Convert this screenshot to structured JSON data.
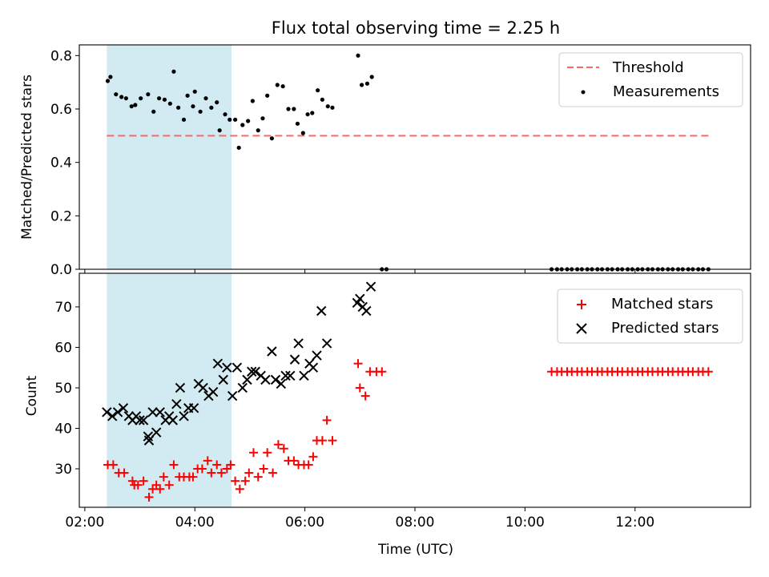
{
  "title": "Flux total observing time = 2.25 h",
  "colors": {
    "shade": "#add8e6",
    "threshold": "#ff6666",
    "matched": "#ff0000",
    "predicted": "#000000",
    "measurement": "#000000"
  },
  "chart_data": [
    {
      "type": "scatter",
      "ylabel": "Matched/Predicted stars",
      "xlim": [
        "01:54",
        "14:06"
      ],
      "ylim": [
        0,
        0.84
      ],
      "yticks": [
        "0.0",
        "0.2",
        "0.4",
        "0.6",
        "0.8"
      ],
      "shaded_span": [
        "02:24",
        "04:40"
      ],
      "legend": {
        "position": "top-right",
        "entries": [
          "Threshold",
          "Measurements"
        ]
      },
      "threshold": {
        "name": "Threshold",
        "y": 0.5,
        "x": [
          "02:24",
          "13:20"
        ],
        "style": "dashed"
      },
      "series": [
        {
          "name": "Measurements",
          "marker": "dot",
          "points": [
            [
              "02:25",
              0.705
            ],
            [
              "02:28",
              0.72
            ],
            [
              "02:34",
              0.655
            ],
            [
              "02:40",
              0.645
            ],
            [
              "02:45",
              0.64
            ],
            [
              "02:51",
              0.61
            ],
            [
              "02:55",
              0.615
            ],
            [
              "03:01",
              0.64
            ],
            [
              "03:09",
              0.655
            ],
            [
              "03:15",
              0.59
            ],
            [
              "03:21",
              0.64
            ],
            [
              "03:27",
              0.635
            ],
            [
              "03:33",
              0.62
            ],
            [
              "03:37",
              0.74
            ],
            [
              "03:42",
              0.605
            ],
            [
              "03:48",
              0.56
            ],
            [
              "03:52",
              0.65
            ],
            [
              "03:58",
              0.61
            ],
            [
              "04:00",
              0.665
            ],
            [
              "04:06",
              0.59
            ],
            [
              "04:12",
              0.64
            ],
            [
              "04:18",
              0.605
            ],
            [
              "04:24",
              0.625
            ],
            [
              "04:27",
              0.52
            ],
            [
              "04:33",
              0.58
            ],
            [
              "04:38",
              0.56
            ],
            [
              "04:44",
              0.56
            ],
            [
              "04:48",
              0.455
            ],
            [
              "04:52",
              0.54
            ],
            [
              "04:58",
              0.555
            ],
            [
              "05:03",
              0.63
            ],
            [
              "05:09",
              0.52
            ],
            [
              "05:14",
              0.565
            ],
            [
              "05:19",
              0.65
            ],
            [
              "05:24",
              0.49
            ],
            [
              "05:30",
              0.69
            ],
            [
              "05:36",
              0.685
            ],
            [
              "05:42",
              0.6
            ],
            [
              "05:48",
              0.6
            ],
            [
              "05:52",
              0.545
            ],
            [
              "05:58",
              0.51
            ],
            [
              "06:03",
              0.58
            ],
            [
              "06:08",
              0.585
            ],
            [
              "06:14",
              0.67
            ],
            [
              "06:19",
              0.635
            ],
            [
              "06:25",
              0.61
            ],
            [
              "06:30",
              0.605
            ],
            [
              "06:58",
              0.8
            ],
            [
              "07:02",
              0.69
            ],
            [
              "07:08",
              0.695
            ],
            [
              "07:13",
              0.72
            ],
            [
              "07:24",
              0.0
            ],
            [
              "07:29",
              0.0
            ],
            [
              "10:29",
              0.0
            ],
            [
              "10:35",
              0.0
            ],
            [
              "10:40",
              0.0
            ],
            [
              "10:46",
              0.0
            ],
            [
              "10:51",
              0.0
            ],
            [
              "10:57",
              0.0
            ],
            [
              "11:02",
              0.0
            ],
            [
              "11:08",
              0.0
            ],
            [
              "11:13",
              0.0
            ],
            [
              "11:19",
              0.0
            ],
            [
              "11:24",
              0.0
            ],
            [
              "11:30",
              0.0
            ],
            [
              "11:35",
              0.0
            ],
            [
              "11:41",
              0.0
            ],
            [
              "11:46",
              0.0
            ],
            [
              "11:52",
              0.0
            ],
            [
              "11:57",
              0.0
            ],
            [
              "12:03",
              0.0
            ],
            [
              "12:08",
              0.0
            ],
            [
              "12:14",
              0.0
            ],
            [
              "12:19",
              0.0
            ],
            [
              "12:25",
              0.0
            ],
            [
              "12:30",
              0.0
            ],
            [
              "12:36",
              0.0
            ],
            [
              "12:41",
              0.0
            ],
            [
              "12:47",
              0.0
            ],
            [
              "12:52",
              0.0
            ],
            [
              "12:58",
              0.0
            ],
            [
              "13:03",
              0.0
            ],
            [
              "13:09",
              0.0
            ],
            [
              "13:14",
              0.0
            ],
            [
              "13:20",
              0.0
            ]
          ]
        }
      ]
    },
    {
      "type": "scatter",
      "xlabel": "Time (UTC)",
      "ylabel": "Count",
      "xlim": [
        "01:54",
        "14:06"
      ],
      "ylim": [
        20.5,
        78.3
      ],
      "yticks": [
        "30",
        "40",
        "50",
        "60",
        "70"
      ],
      "xticks": [
        "02:00",
        "04:00",
        "06:00",
        "08:00",
        "10:00",
        "12:00"
      ],
      "shaded_span": [
        "02:24",
        "04:40"
      ],
      "legend": {
        "position": "top-right",
        "entries": [
          "Matched stars",
          "Predicted stars"
        ]
      },
      "series": [
        {
          "name": "Matched stars",
          "marker": "plus",
          "points": [
            [
              "02:25",
              31
            ],
            [
              "02:31",
              31
            ],
            [
              "02:37",
              29
            ],
            [
              "02:43",
              29
            ],
            [
              "02:52",
              27
            ],
            [
              "02:54",
              26
            ],
            [
              "02:58",
              26
            ],
            [
              "03:04",
              27
            ],
            [
              "03:10",
              23
            ],
            [
              "03:14",
              25
            ],
            [
              "03:18",
              26
            ],
            [
              "03:22",
              25
            ],
            [
              "03:26",
              28
            ],
            [
              "03:32",
              26
            ],
            [
              "03:37",
              31
            ],
            [
              "03:43",
              28
            ],
            [
              "03:48",
              28
            ],
            [
              "03:54",
              28
            ],
            [
              "03:58",
              28
            ],
            [
              "04:03",
              30
            ],
            [
              "04:08",
              30
            ],
            [
              "04:14",
              32
            ],
            [
              "04:18",
              29
            ],
            [
              "04:24",
              31
            ],
            [
              "04:29",
              29
            ],
            [
              "04:35",
              30
            ],
            [
              "04:39",
              31
            ],
            [
              "04:44",
              27
            ],
            [
              "04:49",
              25
            ],
            [
              "04:55",
              27
            ],
            [
              "04:59",
              29
            ],
            [
              "05:04",
              34
            ],
            [
              "05:09",
              28
            ],
            [
              "05:15",
              30
            ],
            [
              "05:19",
              34
            ],
            [
              "05:25",
              29
            ],
            [
              "05:31",
              36
            ],
            [
              "05:37",
              35
            ],
            [
              "05:42",
              32
            ],
            [
              "05:48",
              32
            ],
            [
              "05:53",
              31
            ],
            [
              "05:59",
              31
            ],
            [
              "06:04",
              31
            ],
            [
              "06:09",
              33
            ],
            [
              "06:13",
              37
            ],
            [
              "06:19",
              37
            ],
            [
              "06:24",
              42
            ],
            [
              "06:30",
              37
            ],
            [
              "06:58",
              56
            ],
            [
              "07:00",
              50
            ],
            [
              "07:06",
              48
            ],
            [
              "07:11",
              54
            ],
            [
              "07:18",
              54
            ],
            [
              "07:24",
              54
            ],
            [
              "10:29",
              54
            ],
            [
              "10:35",
              54
            ],
            [
              "10:40",
              54
            ],
            [
              "10:46",
              54
            ],
            [
              "10:51",
              54
            ],
            [
              "10:57",
              54
            ],
            [
              "11:02",
              54
            ],
            [
              "11:08",
              54
            ],
            [
              "11:13",
              54
            ],
            [
              "11:19",
              54
            ],
            [
              "11:24",
              54
            ],
            [
              "11:30",
              54
            ],
            [
              "11:35",
              54
            ],
            [
              "11:41",
              54
            ],
            [
              "11:46",
              54
            ],
            [
              "11:52",
              54
            ],
            [
              "11:57",
              54
            ],
            [
              "12:03",
              54
            ],
            [
              "12:08",
              54
            ],
            [
              "12:14",
              54
            ],
            [
              "12:19",
              54
            ],
            [
              "12:25",
              54
            ],
            [
              "12:30",
              54
            ],
            [
              "12:36",
              54
            ],
            [
              "12:41",
              54
            ],
            [
              "12:47",
              54
            ],
            [
              "12:52",
              54
            ],
            [
              "12:58",
              54
            ],
            [
              "13:03",
              54
            ],
            [
              "13:09",
              54
            ],
            [
              "13:14",
              54
            ],
            [
              "13:20",
              54
            ]
          ]
        },
        {
          "name": "Predicted stars",
          "marker": "x",
          "points": [
            [
              "02:24",
              44
            ],
            [
              "02:30",
              43
            ],
            [
              "02:36",
              44
            ],
            [
              "02:42",
              45
            ],
            [
              "02:48",
              43
            ],
            [
              "02:52",
              42
            ],
            [
              "02:56",
              43
            ],
            [
              "03:00",
              42
            ],
            [
              "03:04",
              42
            ],
            [
              "03:09",
              38
            ],
            [
              "03:10",
              37
            ],
            [
              "03:14",
              44
            ],
            [
              "03:18",
              39
            ],
            [
              "03:22",
              44
            ],
            [
              "03:28",
              42
            ],
            [
              "03:32",
              43
            ],
            [
              "03:36",
              42
            ],
            [
              "03:40",
              46
            ],
            [
              "03:44",
              50
            ],
            [
              "03:48",
              43
            ],
            [
              "03:53",
              45
            ],
            [
              "03:59",
              45
            ],
            [
              "04:04",
              51
            ],
            [
              "04:09",
              50
            ],
            [
              "04:15",
              48
            ],
            [
              "04:20",
              49
            ],
            [
              "04:25",
              56
            ],
            [
              "04:31",
              52
            ],
            [
              "04:35",
              55
            ],
            [
              "04:41",
              48
            ],
            [
              "04:46",
              55
            ],
            [
              "04:52",
              50
            ],
            [
              "04:57",
              52
            ],
            [
              "05:02",
              54
            ],
            [
              "05:06",
              54
            ],
            [
              "05:12",
              53
            ],
            [
              "05:17",
              52
            ],
            [
              "05:24",
              59
            ],
            [
              "05:28",
              52
            ],
            [
              "05:34",
              51
            ],
            [
              "05:39",
              53
            ],
            [
              "05:44",
              53
            ],
            [
              "05:49",
              57
            ],
            [
              "05:53",
              61
            ],
            [
              "05:59",
              53
            ],
            [
              "06:05",
              56
            ],
            [
              "06:09",
              55
            ],
            [
              "06:13",
              58
            ],
            [
              "06:18",
              69
            ],
            [
              "06:24",
              61
            ],
            [
              "06:57",
              71
            ],
            [
              "07:00",
              72
            ],
            [
              "07:03",
              70
            ],
            [
              "07:07",
              69
            ],
            [
              "07:12",
              75
            ]
          ]
        }
      ]
    }
  ]
}
